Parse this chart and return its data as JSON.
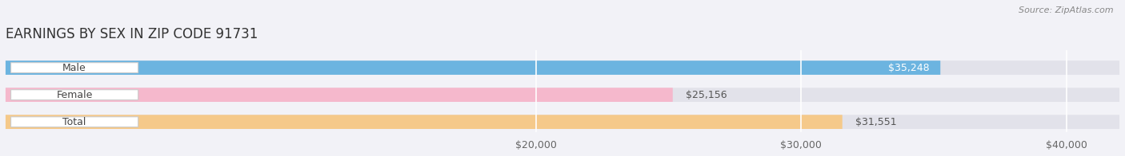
{
  "title": "EARNINGS BY SEX IN ZIP CODE 91731",
  "source": "Source: ZipAtlas.com",
  "categories": [
    "Male",
    "Female",
    "Total"
  ],
  "values": [
    35248,
    25156,
    31551
  ],
  "bar_colors": [
    "#6cb4e0",
    "#f5b8cc",
    "#f5c98a"
  ],
  "background_color": "#f2f2f7",
  "bar_bg_color": "#e2e2ea",
  "xmin": 0,
  "xmax": 42000,
  "xticks": [
    20000,
    30000,
    40000
  ],
  "xtick_labels": [
    "$20,000",
    "$30,000",
    "$40,000"
  ],
  "title_fontsize": 12,
  "tick_fontsize": 9,
  "label_fontsize": 9,
  "value_fontsize": 9
}
